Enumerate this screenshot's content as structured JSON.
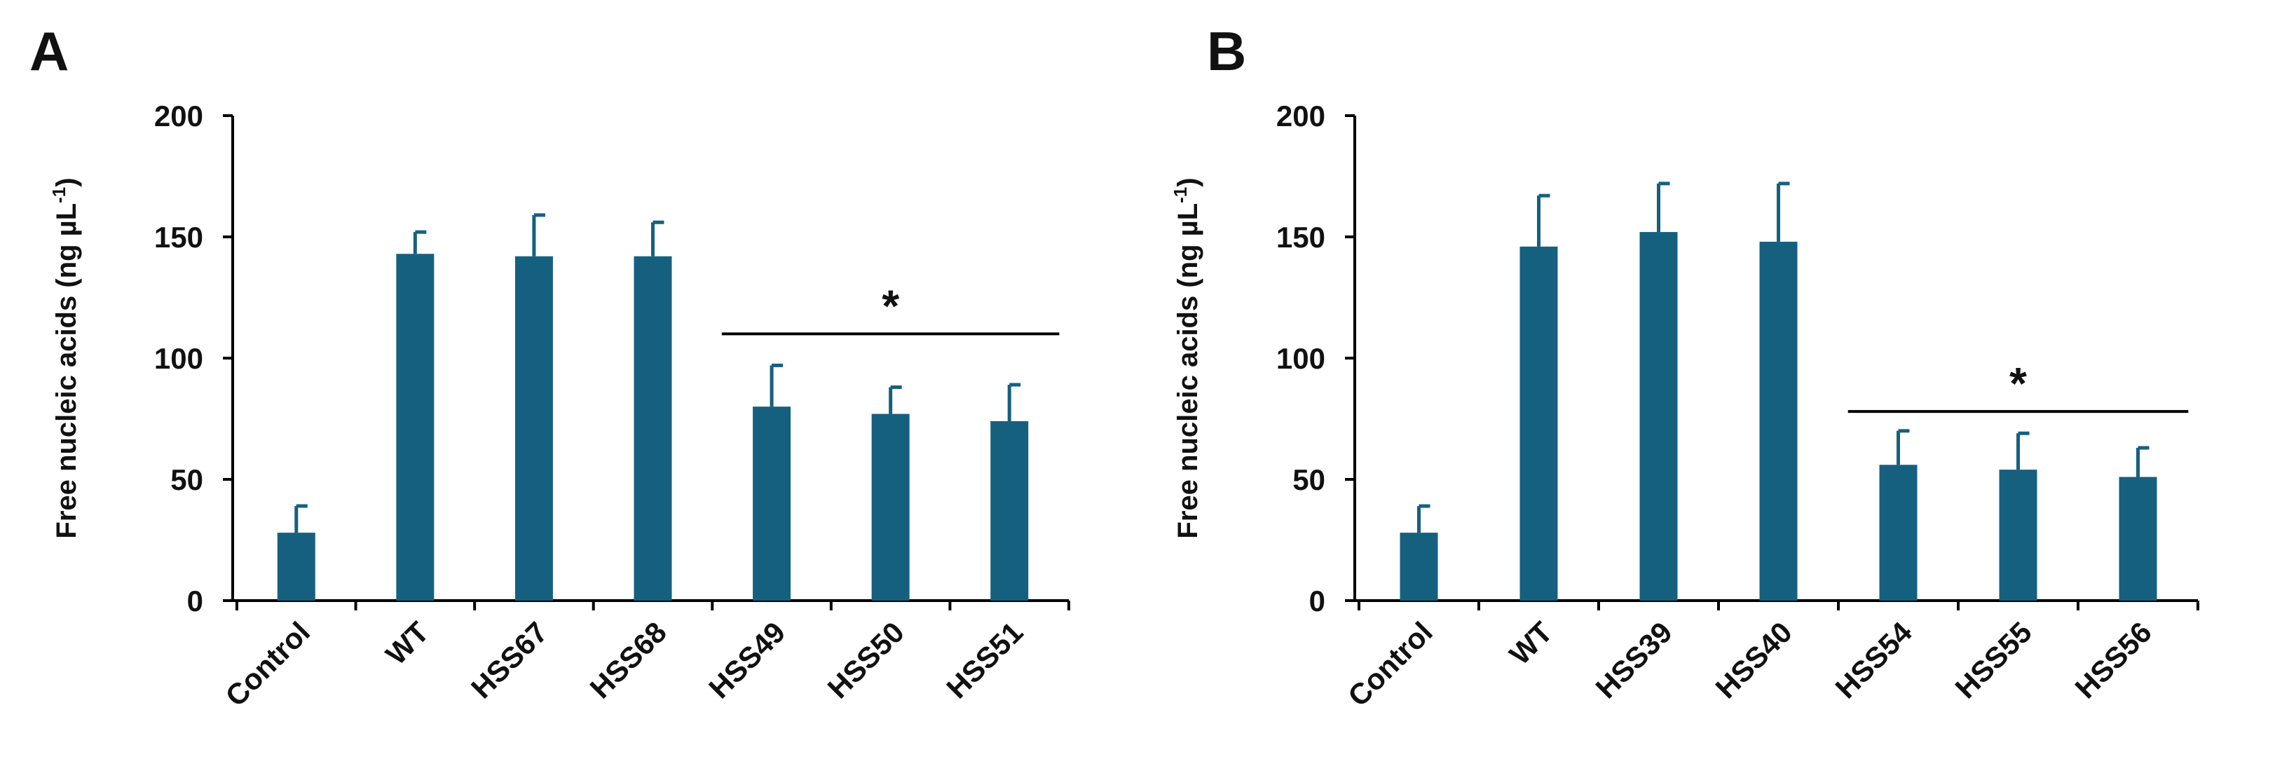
{
  "colors": {
    "bar": "#16607f",
    "axis": "#000000",
    "text": "#111111"
  },
  "chart_data": [
    {
      "panel_label": "A",
      "type": "bar",
      "categories": [
        "Control",
        "WT",
        "HSS67",
        "HSS68",
        "HSS49",
        "HSS50",
        "HSS51"
      ],
      "values": [
        28,
        143,
        142,
        142,
        80,
        77,
        74
      ],
      "errors": [
        11,
        9,
        17,
        14,
        17,
        11,
        15
      ],
      "ylabel": "Free nucleic acids (ng µL",
      "ylabel_sup": "-1",
      "ylabel_close": ")",
      "ylim": [
        0,
        200
      ],
      "yticks": [
        "0",
        "50",
        "100",
        "150",
        "200"
      ],
      "yticks_values": [
        0,
        50,
        100,
        150,
        200
      ],
      "significance": {
        "symbol": "*",
        "from_category": "HSS49",
        "to_category": "HSS51",
        "y": 110
      },
      "grid": false,
      "legend": "none"
    },
    {
      "panel_label": "B",
      "type": "bar",
      "categories": [
        "Control",
        "WT",
        "HSS39",
        "HSS40",
        "HSS54",
        "HSS55",
        "HSS56"
      ],
      "values": [
        28,
        146,
        152,
        148,
        56,
        54,
        51
      ],
      "errors": [
        11,
        21,
        20,
        24,
        14,
        15,
        12
      ],
      "ylabel": "Free nucleic acids (ng µL",
      "ylabel_sup": "-1",
      "ylabel_close": ")",
      "ylim": [
        0,
        200
      ],
      "yticks": [
        "0",
        "50",
        "100",
        "150",
        "200"
      ],
      "yticks_values": [
        0,
        50,
        100,
        150,
        200
      ],
      "significance": {
        "symbol": "*",
        "from_category": "HSS54",
        "to_category": "HSS56",
        "y": 78
      },
      "grid": false,
      "legend": "none"
    }
  ]
}
